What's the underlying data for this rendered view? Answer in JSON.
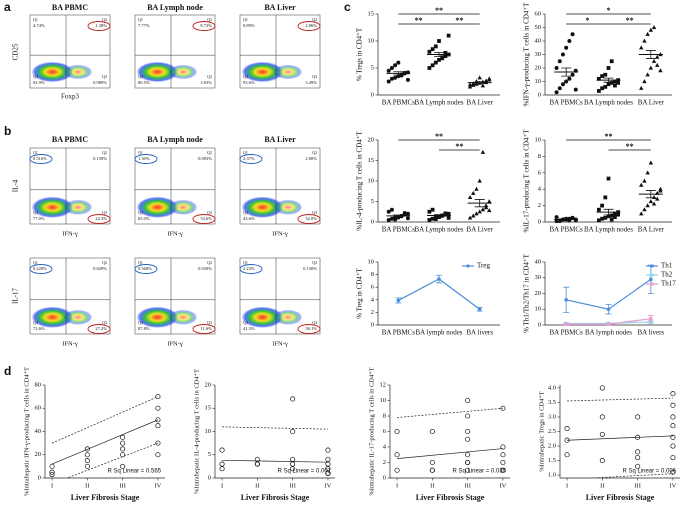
{
  "panel_letters": [
    "a",
    "b",
    "c",
    "d"
  ],
  "quadrant_names": [
    "Q1",
    "Q2",
    "Q3",
    "Q4"
  ],
  "flow_a": {
    "ylabel": "CD25",
    "xlabel": "Foxp3",
    "plots": [
      {
        "title": "BA PBMC",
        "q": [
          "4.74%",
          "1.38%",
          "0.989%",
          "92.9%"
        ]
      },
      {
        "title": "BA Lymph node",
        "q": [
          "7.77%",
          "8.72%",
          "3.03%",
          "80.5%"
        ]
      },
      {
        "title": "BA Liver",
        "q": [
          "0.89%",
          "2.06%",
          "3.49%",
          "93.6%"
        ]
      }
    ]
  },
  "flow_b": {
    "xlabel": "IFN-γ",
    "titles": [
      "BA PBMC",
      "BA Lymph node",
      "BA Liver"
    ],
    "rows": [
      {
        "ylabel": "IL-4",
        "plots": [
          {
            "q": [
              "0.516%",
              "0.150%",
              "22.3%",
              "77.0%"
            ]
          },
          {
            "q": [
              "1.30%",
              "0.093%",
              "33.6%",
              "65.0%"
            ]
          },
          {
            "q": [
              "2.37%",
              "2.00%",
              "52.0%",
              "43.6%"
            ]
          }
        ]
      },
      {
        "ylabel": "IL-17",
        "plots": [
          {
            "q": [
              "0.220%",
              "0.029%",
              "27.2%",
              "72.6%"
            ]
          },
          {
            "q": [
              "0.560%",
              "0.039%",
              "11.6%",
              "87.8%"
            ]
          },
          {
            "q": [
              "2.23%",
              "0.130%",
              "56.1%",
              "41.5%"
            ]
          }
        ]
      }
    ]
  },
  "chart_data": [
    {
      "type": "dot",
      "ylabel": "% Tregs in CD4⁺T",
      "categories": [
        "BA PBMCs",
        "BA Lymph nodes",
        "BA Liver"
      ],
      "ylim": [
        0,
        15
      ],
      "yticks": [
        0,
        5,
        10,
        15
      ],
      "groups": [
        [
          2.5,
          3,
          3.2,
          3.5,
          3.8,
          4,
          4.2,
          4.5,
          5,
          5.5,
          6,
          3.6,
          4.1,
          2.8
        ],
        [
          5,
          5.5,
          6,
          6.5,
          7,
          7.2,
          7.5,
          8,
          8.5,
          9,
          10,
          6.8,
          7.8,
          11
        ],
        [
          1.5,
          1.8,
          2,
          2.2,
          2.4,
          2.6,
          3,
          1.9,
          2.1,
          2.5,
          3.2,
          1.7,
          2.3,
          2.8
        ]
      ],
      "means": [
        4,
        7.5,
        2.3
      ],
      "sems": [
        0.3,
        0.4,
        0.15
      ],
      "significance": [
        {
          "pair": [
            "BA PBMCs",
            "BA Liver"
          ],
          "label": "**"
        },
        {
          "pair": [
            "BA PBMCs",
            "BA Lymph nodes"
          ],
          "label": "**"
        },
        {
          "pair": [
            "BA Lymph nodes",
            "BA Liver"
          ],
          "label": "**"
        }
      ]
    },
    {
      "type": "dot",
      "ylabel": "%IFN-γ-producing T cells in CD4⁺T",
      "categories": [
        "BA PBMCs",
        "BA Lymph nodes",
        "BA Liver"
      ],
      "ylim": [
        0,
        60
      ],
      "yticks": [
        0,
        10,
        20,
        30,
        40,
        50,
        60
      ],
      "groups": [
        [
          2,
          5,
          8,
          10,
          12,
          15,
          18,
          20,
          25,
          30,
          35,
          40,
          45,
          4
        ],
        [
          3,
          5,
          6,
          8,
          9,
          10,
          11,
          12,
          14,
          15,
          20,
          25,
          7,
          9
        ],
        [
          5,
          10,
          15,
          20,
          25,
          28,
          30,
          35,
          40,
          45,
          48,
          50,
          22,
          18
        ]
      ],
      "means": [
        17,
        11,
        30
      ],
      "sems": [
        3,
        1.5,
        3
      ],
      "significance": [
        {
          "pair": [
            "BA PBMCs",
            "BA Liver"
          ],
          "label": "*"
        },
        {
          "pair": [
            "BA PBMCs",
            "BA Lymph nodes"
          ],
          "label": "*"
        },
        {
          "pair": [
            "BA Lymph nodes",
            "BA Liver"
          ],
          "label": "**"
        }
      ]
    },
    {
      "type": "dot",
      "ylabel": "%IL-4-producing T cells in CD4⁺T",
      "categories": [
        "BA PBMCs",
        "BA Lymph nodes",
        "BA Liver"
      ],
      "ylim": [
        0,
        20
      ],
      "yticks": [
        0,
        5,
        10,
        15,
        20
      ],
      "groups": [
        [
          0.5,
          0.8,
          1,
          1.2,
          1.5,
          1.8,
          2,
          2.5,
          3,
          0.6,
          1.1,
          1.4,
          2.2,
          0.9
        ],
        [
          0.5,
          0.8,
          1,
          1.2,
          1.5,
          1.8,
          2,
          2.5,
          3,
          0.7,
          1.3,
          1.6,
          2.1,
          1
        ],
        [
          1,
          1.5,
          2,
          2.5,
          3,
          4,
          5,
          6,
          7,
          8,
          10,
          17,
          3.5,
          2.8
        ]
      ],
      "means": [
        1.5,
        1.6,
        4.6
      ],
      "sems": [
        0.2,
        0.2,
        0.9
      ],
      "significance": [
        {
          "pair": [
            "BA PBMCs",
            "BA Liver"
          ],
          "label": "**"
        },
        {
          "pair": [
            "BA Lymph nodes",
            "BA Liver"
          ],
          "label": "**"
        }
      ]
    },
    {
      "type": "dot",
      "ylabel": "%IL-17-producing T cells in CD4⁺T",
      "categories": [
        "BA PBMCs",
        "BA Lymph nodes",
        "BA Liver"
      ],
      "ylim": [
        0,
        10
      ],
      "yticks": [
        0,
        2,
        4,
        6,
        8,
        10
      ],
      "groups": [
        [
          0.1,
          0.2,
          0.3,
          0.3,
          0.4,
          0.5,
          0.2,
          0.6,
          0.1,
          0.3,
          0.4,
          0.2,
          0.5,
          0.3
        ],
        [
          0.2,
          0.4,
          0.5,
          0.7,
          0.8,
          1,
          1.2,
          1.5,
          2,
          3,
          5.3,
          0.3,
          0.6,
          0.9
        ],
        [
          1,
          1.5,
          2,
          2.5,
          3,
          3.5,
          4,
          4.5,
          5,
          6,
          7.2,
          2.2,
          2.8,
          3.8
        ]
      ],
      "means": [
        0.3,
        1.2,
        3.4
      ],
      "sems": [
        0.05,
        0.35,
        0.45
      ],
      "significance": [
        {
          "pair": [
            "BA PBMCs",
            "BA Liver"
          ],
          "label": "**"
        },
        {
          "pair": [
            "BA Lymph nodes",
            "BA Liver"
          ],
          "label": "**"
        }
      ]
    },
    {
      "type": "line",
      "ylabel": "% Treg in CD4⁺T",
      "categories": [
        "BA PBMCs",
        "BA lymph nodes",
        "BA livers"
      ],
      "ylim": [
        0,
        10
      ],
      "yticks": [
        0,
        2,
        4,
        6,
        8,
        10
      ],
      "series": [
        {
          "name": "Treg",
          "color": "#4a8fd8",
          "values": [
            3.9,
            7.3,
            2.5
          ],
          "errors": [
            0.4,
            0.6,
            0.3
          ]
        }
      ]
    },
    {
      "type": "line",
      "ylabel": "% Th1/Th2/Th17 in CD4⁺T",
      "categories": [
        "BA PBMCs",
        "BA lymph nodes",
        "BA livers"
      ],
      "ylim": [
        0,
        40
      ],
      "yticks": [
        0,
        10,
        20,
        30,
        40
      ],
      "series": [
        {
          "name": "Th1",
          "color": "#4a8fd8",
          "values": [
            16,
            10,
            29
          ],
          "errors": [
            8,
            3,
            9
          ]
        },
        {
          "name": "Th2",
          "color": "#8fd3f0",
          "values": [
            1,
            1,
            2
          ],
          "errors": [
            0.5,
            0.5,
            1
          ]
        },
        {
          "name": "Th17",
          "color": "#e89ad0",
          "values": [
            0.5,
            0.5,
            4
          ],
          "errors": [
            0.3,
            0.3,
            2
          ]
        }
      ]
    },
    {
      "type": "scatter",
      "ylabel": "%Intrahepatic IFN-γ-producing T cells in CD4⁺T",
      "xlabel": "Liver Fibrosis Stage",
      "annotation": "R Sq Linear = 0.565",
      "xlim": [
        0.8,
        4.2
      ],
      "xticks": [
        {
          "value": 1,
          "label": "I"
        },
        {
          "value": 2,
          "label": "II"
        },
        {
          "value": 3,
          "label": "III"
        },
        {
          "value": 4,
          "label": "IV"
        }
      ],
      "ylim": [
        0,
        80
      ],
      "yticks": [
        0,
        20,
        40,
        60,
        80
      ],
      "x": [
        1,
        1,
        1,
        2,
        2,
        2,
        2,
        3,
        3,
        3,
        3,
        3,
        4,
        4,
        4,
        4,
        4,
        4
      ],
      "y": [
        10,
        5,
        3,
        20,
        25,
        10,
        15,
        30,
        25,
        20,
        35,
        10,
        70,
        60,
        50,
        45,
        30,
        20
      ],
      "fit": [
        12,
        50
      ],
      "ci_upper": [
        30,
        70
      ],
      "ci_lower": [
        -5,
        30
      ]
    },
    {
      "type": "scatter",
      "ylabel": "%Intrahepatic IL-4-producing T cells in CD4⁺T",
      "xlabel": "Liver Fibrosis Stage",
      "annotation": "R Sq Linear = 0.001",
      "xlim": [
        0.8,
        4.2
      ],
      "xticks": [
        {
          "value": 1,
          "label": "I"
        },
        {
          "value": 2,
          "label": "II"
        },
        {
          "value": 3,
          "label": "III"
        },
        {
          "value": 4,
          "label": "IV"
        }
      ],
      "ylim": [
        0,
        20
      ],
      "yticks": [
        0,
        5,
        10,
        15,
        20
      ],
      "x": [
        1,
        1,
        1,
        2,
        2,
        2,
        3,
        3,
        3,
        3,
        3,
        4,
        4,
        4,
        4,
        4,
        4,
        4
      ],
      "y": [
        6,
        3,
        2,
        4,
        3,
        3,
        17,
        10,
        4,
        3,
        2,
        6,
        4,
        3,
        2,
        1,
        1,
        1
      ],
      "fit": [
        3.8,
        3.4
      ],
      "ci_upper": [
        11,
        10.5
      ],
      "ci_lower": [
        -3,
        -3
      ]
    },
    {
      "type": "scatter",
      "ylabel": "%Intrahepatic IL-17-producing T cells in CD4⁺T",
      "xlabel": "Liver Fibrosis Stage",
      "annotation": "R Sq Linear = 0.035",
      "xlim": [
        0.8,
        4.2
      ],
      "xticks": [
        {
          "value": 1,
          "label": "I"
        },
        {
          "value": 2,
          "label": "II"
        },
        {
          "value": 3,
          "label": "III"
        },
        {
          "value": 4,
          "label": "IV"
        }
      ],
      "ylim": [
        0,
        12
      ],
      "yticks": [
        0,
        2,
        4,
        6,
        8,
        10,
        12
      ],
      "x": [
        1,
        1,
        1,
        2,
        2,
        2,
        2,
        3,
        3,
        3,
        3,
        3,
        3,
        3,
        3,
        4,
        4,
        4,
        4,
        4,
        4
      ],
      "y": [
        6,
        3,
        1,
        6,
        2,
        1,
        1,
        10,
        8,
        6,
        5,
        3,
        2,
        2,
        1,
        9,
        4,
        3,
        2,
        1,
        1
      ],
      "fit": [
        2.5,
        3.8
      ],
      "ci_upper": [
        7.8,
        9
      ],
      "ci_lower": [
        -2,
        -1
      ]
    },
    {
      "type": "scatter",
      "ylabel": "%Intrahepatic Tregs in CD4⁺T",
      "xlabel": "Liver Fibrosis Stage",
      "annotation": "R Sq Linear = 0.006",
      "xlim": [
        0.8,
        4.2
      ],
      "xticks": [
        {
          "value": 1,
          "label": "I"
        },
        {
          "value": 2,
          "label": "II"
        },
        {
          "value": 3,
          "label": "III"
        },
        {
          "value": 4,
          "label": "IV"
        }
      ],
      "ylim": [
        0.9,
        4.1
      ],
      "yticks": [
        {
          "value": 1,
          "label": "1.0"
        },
        {
          "value": 1.5,
          "label": "1.5"
        },
        {
          "value": 2,
          "label": "2.0"
        },
        {
          "value": 2.5,
          "label": "2.5"
        },
        {
          "value": 3,
          "label": "3.0"
        },
        {
          "value": 3.5,
          "label": "3.5"
        },
        {
          "value": 4,
          "label": "4.0"
        }
      ],
      "x": [
        1,
        1,
        1,
        2,
        2,
        2,
        2,
        3,
        3,
        3,
        3,
        3,
        4,
        4,
        4,
        4,
        4,
        4,
        4,
        4
      ],
      "y": [
        2.6,
        2.2,
        1.7,
        4.0,
        3.0,
        2.4,
        1.5,
        3.0,
        2.3,
        1.8,
        1.6,
        1.3,
        3.8,
        3.4,
        3.0,
        2.7,
        2.3,
        2.0,
        1.6,
        1.1
      ],
      "fit": [
        2.2,
        2.35
      ],
      "ci_upper": [
        3.55,
        3.65
      ],
      "ci_lower": [
        0.85,
        1.05
      ]
    }
  ]
}
